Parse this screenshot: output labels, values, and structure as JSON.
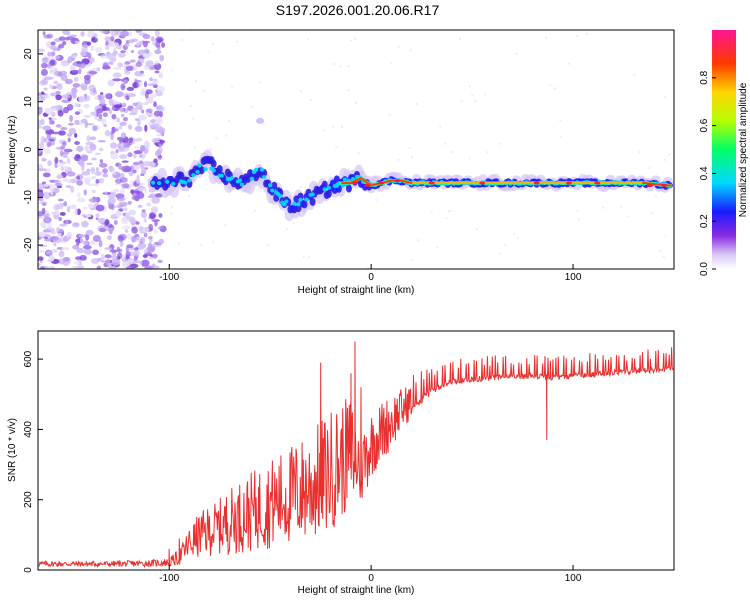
{
  "title": "S197.2026.001.20.06.R17",
  "chart_data": [
    {
      "type": "heatmap",
      "xlabel": "Height of straight line (km)",
      "ylabel": "Frequency (Hz)",
      "xlim": [
        -165,
        150
      ],
      "ylim": [
        -25,
        25
      ],
      "xticks": [
        -100,
        0,
        100
      ],
      "yticks": [
        20,
        10,
        0,
        -10,
        -20
      ],
      "ridge": {
        "x": [
          -108,
          -100,
          -95,
          -90,
          -85,
          -80,
          -75,
          -70,
          -65,
          -60,
          -55,
          -50,
          -45,
          -40,
          -35,
          -30,
          -25,
          -20,
          -15,
          -10,
          -5,
          0,
          5,
          10,
          15,
          20,
          30,
          40,
          60,
          80,
          100,
          120,
          135,
          147
        ],
        "y": [
          -7.5,
          -7,
          -6.5,
          -6,
          -4,
          -3,
          -5,
          -6,
          -7,
          -6,
          -4,
          -8,
          -10,
          -12,
          -11,
          -10,
          -9,
          -8,
          -7,
          -7,
          -6,
          -7.5,
          -7,
          -6.5,
          -6.5,
          -7,
          -7,
          -7,
          -7,
          -7,
          -7,
          -7,
          -7,
          -7.5
        ]
      },
      "colorbar": {
        "label": "Normalized spectral amplitude",
        "ticks": [
          "0.0",
          "0.2",
          "0.4",
          "0.6",
          "0.8"
        ],
        "range": [
          0,
          1
        ]
      }
    },
    {
      "type": "line",
      "xlabel": "Height of straight line (km)",
      "ylabel": "SNR (10 * v/v)",
      "xlim": [
        -165,
        150
      ],
      "ylim": [
        0,
        680
      ],
      "xticks": [
        -100,
        0,
        100
      ],
      "yticks": [
        0,
        200,
        400,
        600
      ],
      "color": "#e8302e",
      "series": {
        "name": "SNR",
        "x": [
          -165,
          -150,
          -130,
          -110,
          -100,
          -95,
          -90,
          -85,
          -80,
          -75,
          -70,
          -60,
          -50,
          -40,
          -30,
          -20,
          -10,
          -5,
          0,
          10,
          20,
          30,
          40,
          50,
          60,
          80,
          90,
          100,
          120,
          150
        ],
        "baseline": [
          15,
          15,
          15,
          16,
          18,
          30,
          60,
          80,
          90,
          100,
          110,
          130,
          150,
          170,
          190,
          230,
          290,
          260,
          330,
          400,
          470,
          520,
          545,
          550,
          555,
          560,
          555,
          560,
          570,
          580
        ],
        "noise": [
          10,
          10,
          10,
          12,
          15,
          30,
          60,
          80,
          90,
          100,
          120,
          140,
          160,
          180,
          200,
          220,
          200,
          150,
          120,
          100,
          60,
          50,
          40,
          40,
          40,
          40,
          40,
          40,
          40,
          40
        ],
        "spikes": [
          [
            -100,
            60
          ],
          [
            -95,
            90
          ],
          [
            -25,
            590
          ],
          [
            -10,
            560
          ],
          [
            -8,
            650
          ],
          [
            -5,
            520
          ],
          [
            87,
            370
          ]
        ]
      }
    }
  ]
}
